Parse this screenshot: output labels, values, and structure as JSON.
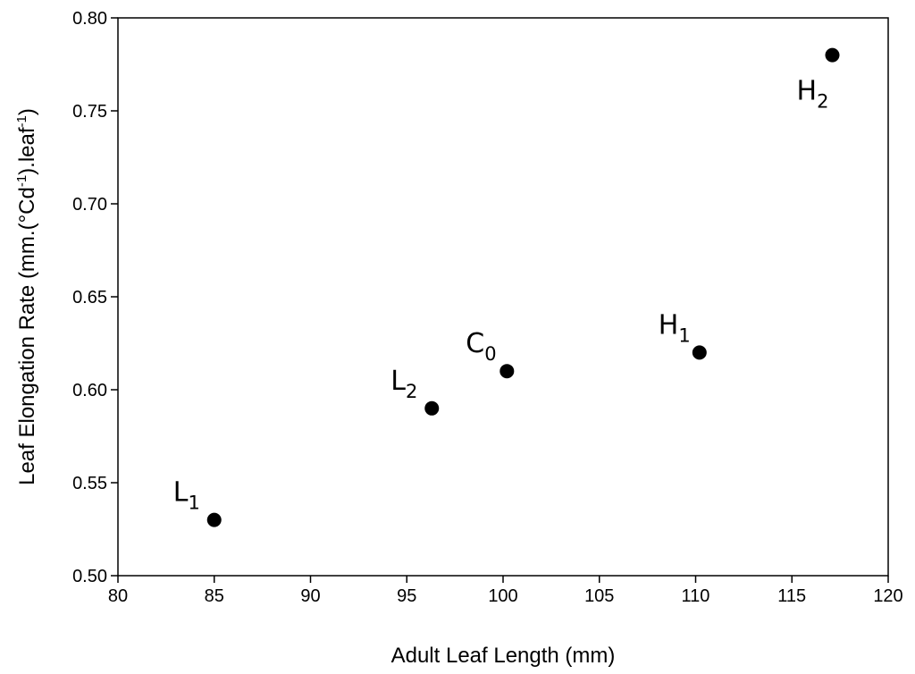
{
  "chart_data": {
    "type": "scatter",
    "title": "",
    "xlabel": "Adult Leaf Length (mm)",
    "ylabel": {
      "main": "Leaf Elongation Rate (mm.(°Cd",
      "sup1": "-1",
      "mid": ").leaf",
      "sup2": "-1",
      "end": ")"
    },
    "xlim": [
      80,
      120
    ],
    "ylim": [
      0.5,
      0.8
    ],
    "xticks": [
      80,
      85,
      90,
      95,
      100,
      105,
      110,
      115,
      120
    ],
    "xtick_labels": [
      "80",
      "85",
      "90",
      "95",
      "100",
      "105",
      "110",
      "115",
      "120"
    ],
    "yticks": [
      0.5,
      0.55,
      0.6,
      0.65,
      0.7,
      0.75,
      0.8
    ],
    "ytick_labels": [
      "0.50",
      "0.55",
      "0.60",
      "0.65",
      "0.70",
      "0.75",
      "0.80"
    ],
    "grid": false,
    "legend": "none",
    "marker_color": "#000000",
    "points": [
      {
        "label": "L",
        "sub": "1",
        "x": 85.0,
        "y": 0.53,
        "label_pos": "upper-left"
      },
      {
        "label": "L",
        "sub": "2",
        "x": 96.3,
        "y": 0.59,
        "label_pos": "upper-left"
      },
      {
        "label": "C",
        "sub": "0",
        "x": 100.2,
        "y": 0.61,
        "label_pos": "upper-left"
      },
      {
        "label": "H",
        "sub": "1",
        "x": 110.2,
        "y": 0.62,
        "label_pos": "upper-left"
      },
      {
        "label": "H",
        "sub": "2",
        "x": 117.1,
        "y": 0.78,
        "label_pos": "below-left"
      }
    ]
  }
}
